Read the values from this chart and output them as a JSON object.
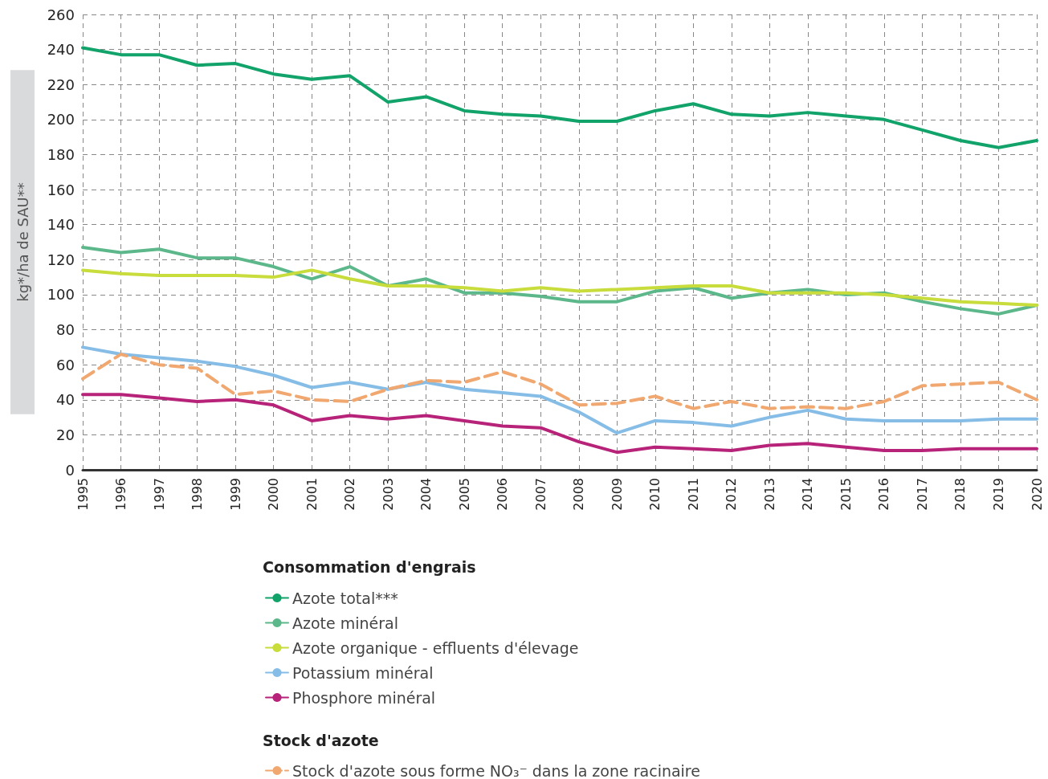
{
  "chart_data": {
    "type": "line",
    "ylabel": "kg*/ha de SAU**",
    "legend_title": "Consommation d'engrais",
    "annotations": [
      "Stock d'azote"
    ],
    "categories": [
      "1995",
      "1996",
      "1997",
      "1998",
      "1999",
      "2000",
      "2001",
      "2002",
      "2003",
      "2004",
      "2005",
      "2006",
      "2007",
      "2008",
      "2009",
      "2010",
      "2011",
      "2012",
      "2013",
      "2014",
      "2015",
      "2016",
      "2017",
      "2018",
      "2019",
      "2020"
    ],
    "ylim": [
      0,
      260
    ],
    "yticks": [
      0,
      20,
      40,
      60,
      80,
      100,
      120,
      140,
      160,
      180,
      200,
      220,
      240,
      260
    ],
    "grid": true,
    "legend": "bottom",
    "marker": "none",
    "series": [
      {
        "name": "Azote total***",
        "color": "#12a36a",
        "line_style": "solid",
        "values": [
          241,
          237,
          237,
          231,
          232,
          226,
          223,
          225,
          210,
          213,
          205,
          203,
          202,
          199,
          199,
          205,
          209,
          203,
          202,
          204,
          202,
          200,
          194,
          188,
          184,
          188
        ]
      },
      {
        "name": "Azote minéral",
        "color": "#5cb88a",
        "line_style": "solid",
        "values": [
          127,
          124,
          126,
          121,
          121,
          116,
          109,
          116,
          105,
          109,
          101,
          101,
          99,
          96,
          96,
          102,
          104,
          98,
          101,
          103,
          100,
          101,
          96,
          92,
          89,
          94
        ]
      },
      {
        "name": "Azote organique - effluents d'élevage",
        "color": "#c8dc3c",
        "line_style": "solid",
        "values": [
          114,
          112,
          111,
          111,
          111,
          110,
          114,
          109,
          105,
          105,
          104,
          102,
          104,
          102,
          103,
          104,
          105,
          105,
          101,
          101,
          101,
          100,
          98,
          96,
          95,
          94
        ]
      },
      {
        "name": "Potassium minéral",
        "color": "#86bde6",
        "line_style": "solid",
        "values": [
          70,
          66,
          64,
          62,
          59,
          54,
          47,
          50,
          46,
          50,
          46,
          44,
          42,
          33,
          21,
          28,
          27,
          25,
          30,
          34,
          29,
          28,
          28,
          28,
          29,
          29
        ]
      },
      {
        "name": "Phosphore minéral",
        "color": "#b8237a",
        "line_style": "solid",
        "values": [
          43,
          43,
          41,
          39,
          40,
          37,
          28,
          31,
          29,
          31,
          28,
          25,
          24,
          16,
          10,
          13,
          12,
          11,
          14,
          15,
          13,
          11,
          11,
          12,
          12,
          12
        ]
      },
      {
        "name": "Stock d'azote sous forme NO₃⁻ dans la zone racinaire",
        "color": "#f0a870",
        "line_style": "dashed",
        "values": [
          52,
          66,
          60,
          58,
          43,
          45,
          40,
          39,
          46,
          51,
          50,
          56,
          49,
          37,
          38,
          42,
          35,
          39,
          35,
          36,
          35,
          39,
          48,
          49,
          50,
          40
        ]
      }
    ]
  }
}
